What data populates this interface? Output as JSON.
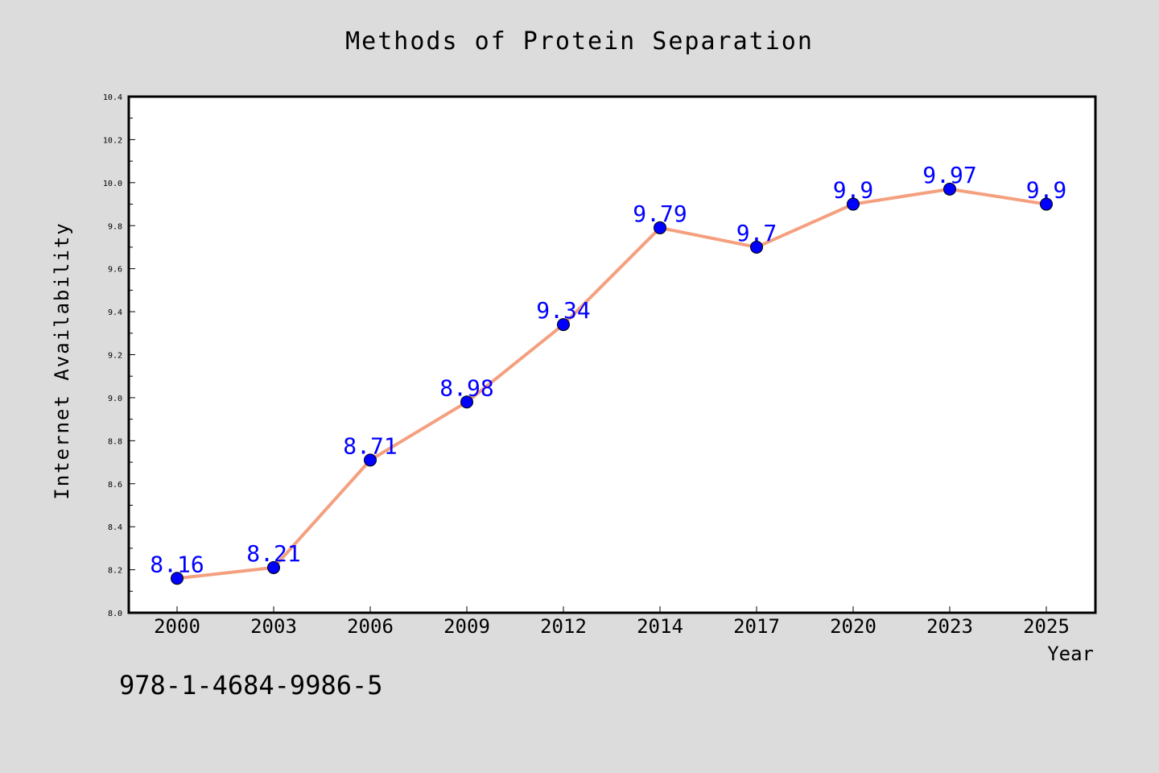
{
  "chart_data": {
    "type": "line",
    "title": "Methods of Protein Separation",
    "xlabel": "Year",
    "ylabel": "Internet Availability",
    "categories": [
      "2000",
      "2003",
      "2006",
      "2009",
      "2012",
      "2014",
      "2017",
      "2020",
      "2023",
      "2025"
    ],
    "series": [
      {
        "values": [
          8.16,
          8.21,
          8.71,
          8.98,
          9.34,
          9.79,
          9.7,
          9.9,
          9.97,
          9.9
        ],
        "labels": [
          "8.16",
          "8.21",
          "8.71",
          "8.98",
          "9.34",
          "9.79",
          "9.7",
          "9.9",
          "9.97",
          "9.9"
        ],
        "line_color": "#f4a07f",
        "marker_color": "#0000ff"
      }
    ],
    "ylim": [
      8.0,
      10.4
    ],
    "yticks": [
      "8.0",
      "8.2",
      "8.4",
      "8.6",
      "8.8",
      "9.0",
      "9.2",
      "9.4",
      "9.6",
      "9.8",
      "10.0",
      "10.2",
      "10.4"
    ],
    "grid": false,
    "data_label_color": "#0000ff"
  },
  "annotation": "978-1-4684-9986-5"
}
